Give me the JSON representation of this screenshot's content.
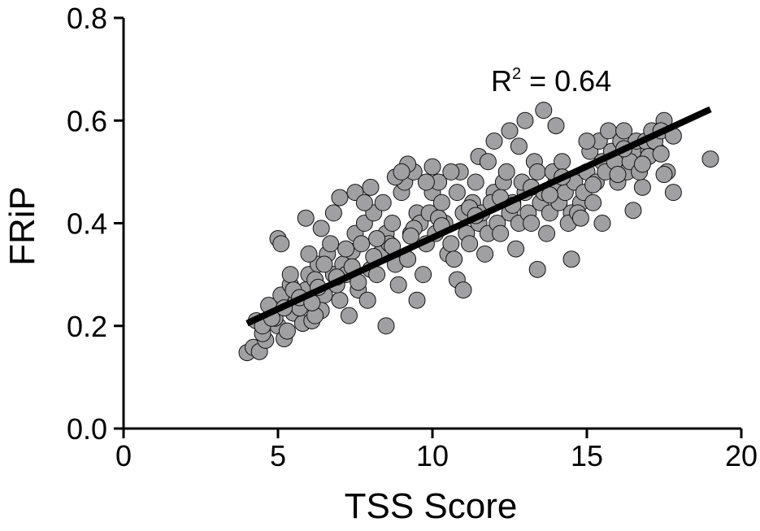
{
  "chart_data": {
    "type": "scatter",
    "title": "",
    "xlabel": "TSS Score",
    "ylabel": "FRiP",
    "xlim": [
      0,
      20
    ],
    "ylim": [
      0,
      0.8
    ],
    "xticks": [
      0,
      5,
      10,
      15,
      20
    ],
    "xtick_labels": [
      "0",
      "5",
      "10",
      "15",
      "20"
    ],
    "yticks": [
      0,
      0.2,
      0.4,
      0.6,
      0.8
    ],
    "ytick_labels": [
      "0.0",
      "0.2",
      "0.4",
      "0.6",
      "0.8"
    ],
    "grid": false,
    "legend": "none",
    "annotation": {
      "prefix": "R",
      "sup": "2",
      "rest": " = 0.64"
    },
    "fit_line": {
      "x": [
        4,
        19
      ],
      "y": [
        0.205,
        0.622
      ]
    },
    "colors": {
      "points": "#a0a0a2",
      "point_edge": "#111111",
      "fit": "#000000"
    },
    "series": [
      {
        "x": [
          4.0,
          4.2,
          4.4,
          4.6,
          4.3,
          4.5,
          4.8,
          5.0,
          5.2,
          4.7,
          4.9,
          5.1,
          5.3,
          5.5,
          5.4,
          5.6,
          5.8,
          6.0,
          5.7,
          5.9,
          6.1,
          6.3,
          6.5,
          6.2,
          6.4,
          6.6,
          6.8,
          7.0,
          6.7,
          6.9,
          7.1,
          7.3,
          7.5,
          7.2,
          7.4,
          7.6,
          7.8,
          8.0,
          7.7,
          7.9,
          8.1,
          8.3,
          8.5,
          8.2,
          8.4,
          8.6,
          8.8,
          9.0,
          8.7,
          8.9,
          9.1,
          9.3,
          9.5,
          9.2,
          9.4,
          9.6,
          9.8,
          10.0,
          9.7,
          9.9,
          10.1,
          10.3,
          10.5,
          10.2,
          10.4,
          10.6,
          10.8,
          11.0,
          10.7,
          10.9,
          11.1,
          11.3,
          11.5,
          11.2,
          11.4,
          11.6,
          11.8,
          12.0,
          11.7,
          11.9,
          12.1,
          12.3,
          12.5,
          12.2,
          12.4,
          12.6,
          12.8,
          13.0,
          12.7,
          12.9,
          13.1,
          13.3,
          13.5,
          13.2,
          13.4,
          13.6,
          13.8,
          14.0,
          13.7,
          13.9,
          14.1,
          14.3,
          14.5,
          14.2,
          14.4,
          14.6,
          14.8,
          15.0,
          14.7,
          14.9,
          15.1,
          15.3,
          15.5,
          15.2,
          15.4,
          15.6,
          15.8,
          16.0,
          15.7,
          15.9,
          16.1,
          16.3,
          16.5,
          16.2,
          16.4,
          16.6,
          16.8,
          17.0,
          16.7,
          16.9,
          17.1,
          17.3,
          17.5,
          17.2,
          17.4,
          17.6,
          17.8,
          19.0,
          5.0,
          5.1,
          5.9,
          6.2,
          6.0,
          5.4,
          8.5,
          9.5,
          10.8,
          11.0,
          12.5,
          12.8,
          13.0,
          9.2,
          8.8,
          7.5,
          7.0,
          6.4,
          14.0,
          14.5,
          12.0,
          11.5,
          9.0,
          10.0,
          8.0,
          6.8,
          7.8,
          9.8,
          10.6,
          11.8,
          13.6,
          15.0,
          16.2,
          17.0,
          17.5,
          17.8,
          16.5,
          15.5,
          14.8,
          13.4,
          5.5,
          6.5,
          7.2,
          8.2,
          9.4,
          10.2,
          11.2,
          12.2,
          13.2,
          14.2,
          4.5,
          4.8,
          5.2,
          5.7,
          6.3,
          6.9,
          7.4,
          8.1,
          8.7,
          9.3,
          10.3,
          11.4,
          12.6,
          13.8,
          15.2,
          16.0,
          16.8,
          17.4,
          6.1,
          7.6
        ],
        "y": [
          0.148,
          0.158,
          0.15,
          0.172,
          0.21,
          0.185,
          0.23,
          0.2,
          0.175,
          0.24,
          0.215,
          0.26,
          0.19,
          0.225,
          0.28,
          0.25,
          0.205,
          0.3,
          0.235,
          0.27,
          0.21,
          0.32,
          0.26,
          0.29,
          0.23,
          0.34,
          0.3,
          0.25,
          0.36,
          0.28,
          0.32,
          0.22,
          0.38,
          0.3,
          0.345,
          0.27,
          0.4,
          0.31,
          0.36,
          0.25,
          0.42,
          0.34,
          0.38,
          0.3,
          0.44,
          0.36,
          0.32,
          0.46,
          0.4,
          0.28,
          0.48,
          0.38,
          0.42,
          0.33,
          0.5,
          0.4,
          0.36,
          0.46,
          0.3,
          0.42,
          0.38,
          0.44,
          0.34,
          0.48,
          0.4,
          0.36,
          0.46,
          0.42,
          0.33,
          0.5,
          0.38,
          0.44,
          0.4,
          0.36,
          0.48,
          0.42,
          0.38,
          0.46,
          0.34,
          0.44,
          0.4,
          0.48,
          0.42,
          0.38,
          0.5,
          0.44,
          0.4,
          0.46,
          0.35,
          0.48,
          0.42,
          0.52,
          0.44,
          0.4,
          0.5,
          0.46,
          0.42,
          0.48,
          0.38,
          0.5,
          0.44,
          0.46,
          0.42,
          0.52,
          0.4,
          0.48,
          0.44,
          0.5,
          0.42,
          0.46,
          0.54,
          0.48,
          0.52,
          0.44,
          0.56,
          0.5,
          0.54,
          0.48,
          0.58,
          0.52,
          0.56,
          0.5,
          0.54,
          0.58,
          0.52,
          0.56,
          0.47,
          0.54,
          0.5,
          0.56,
          0.58,
          0.54,
          0.6,
          0.56,
          0.58,
          0.5,
          0.46,
          0.525,
          0.37,
          0.36,
          0.41,
          0.22,
          0.34,
          0.3,
          0.2,
          0.25,
          0.29,
          0.27,
          0.58,
          0.55,
          0.6,
          0.515,
          0.49,
          0.46,
          0.45,
          0.39,
          0.59,
          0.33,
          0.56,
          0.53,
          0.5,
          0.51,
          0.47,
          0.42,
          0.44,
          0.48,
          0.5,
          0.52,
          0.62,
          0.56,
          0.545,
          0.53,
          0.495,
          0.57,
          0.425,
          0.4,
          0.41,
          0.31,
          0.27,
          0.32,
          0.35,
          0.37,
          0.39,
          0.41,
          0.43,
          0.45,
          0.47,
          0.49,
          0.2,
          0.215,
          0.235,
          0.255,
          0.275,
          0.295,
          0.315,
          0.335,
          0.355,
          0.375,
          0.395,
          0.415,
          0.435,
          0.455,
          0.475,
          0.495,
          0.515,
          0.535,
          0.245,
          0.285
        ]
      }
    ]
  }
}
